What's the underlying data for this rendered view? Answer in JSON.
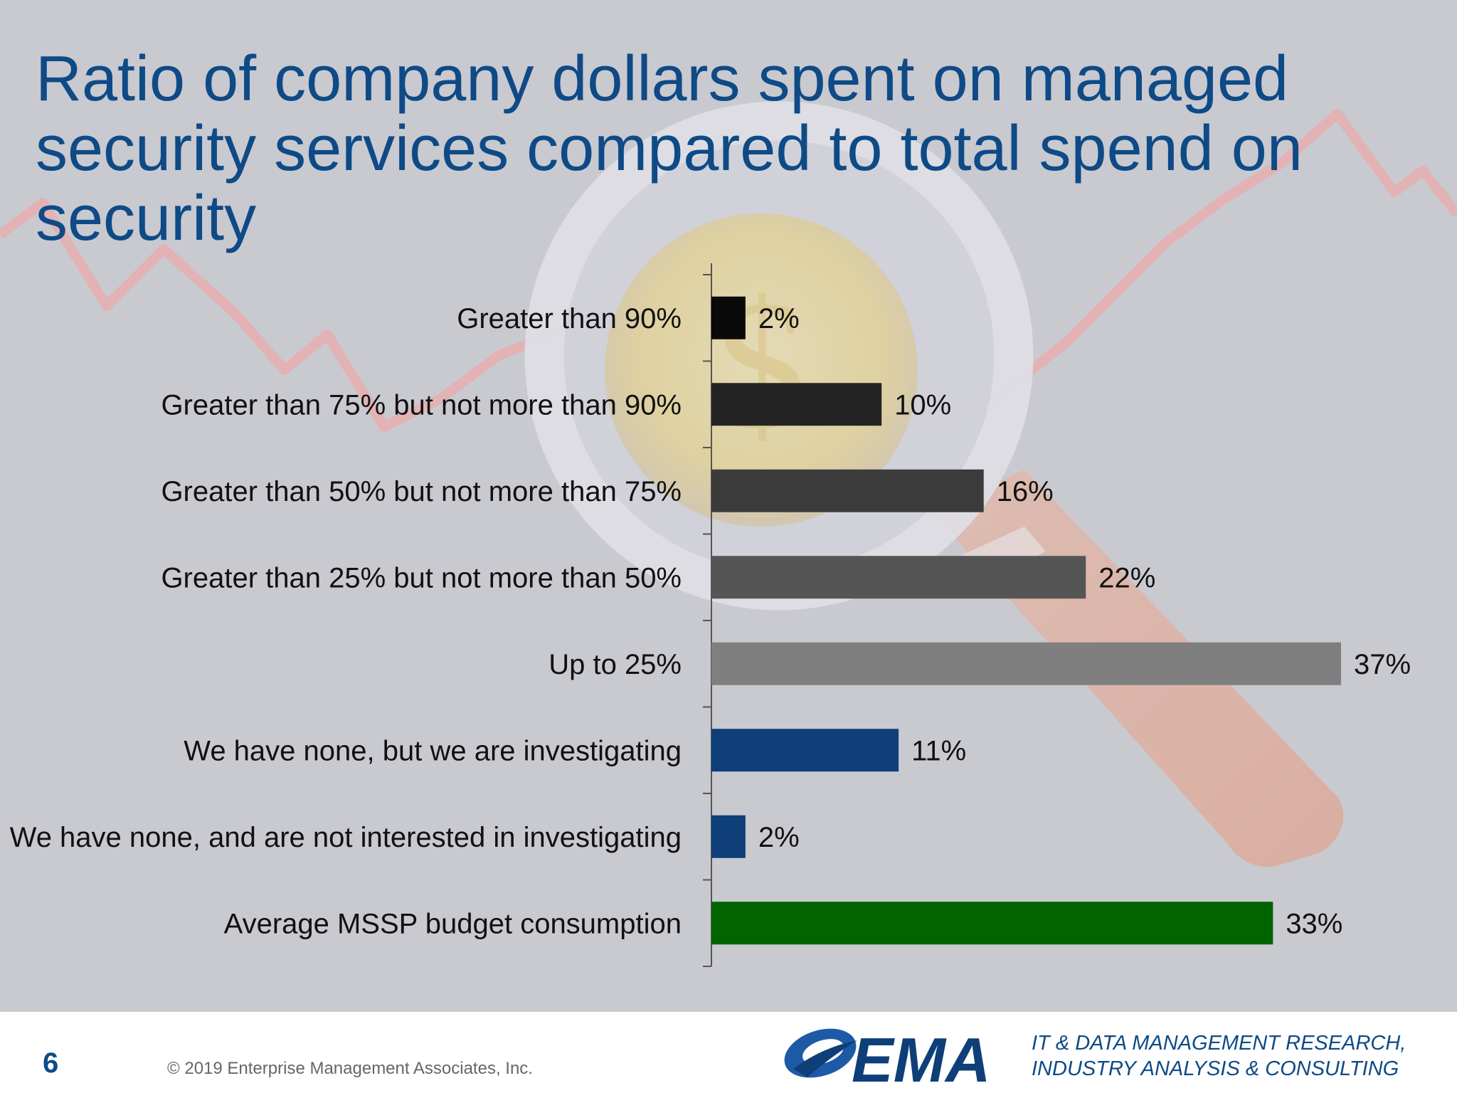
{
  "title": "Ratio of company dollars spent on managed security services compared to total spend on security",
  "background_icon": "magnifier-coin-trendline-illustration",
  "colors": {
    "title": "#0e4a86",
    "bar_gray_1": "#0a0a0a",
    "bar_gray_2": "#232323",
    "bar_gray_3": "#3b3b3b",
    "bar_gray_4": "#555555",
    "bar_gray_5": "#7f7f7f",
    "bar_blue": "#0e3f78",
    "bar_green": "#006400"
  },
  "chart_data": {
    "type": "bar",
    "orientation": "horizontal",
    "title": "Ratio of company dollars spent on managed security services compared to total spend on security",
    "xlabel": "",
    "ylabel": "",
    "xlim": [
      0,
      37
    ],
    "grid": false,
    "categories": [
      "Greater than 90%",
      "Greater than 75% but not more than 90%",
      "Greater than 50% but not more than 75%",
      "Greater than 25% but not more than 50%",
      "Up to 25%",
      "We have none, but we are investigating",
      "We have none, and are not interested in investigating",
      "Average MSSP budget consumption"
    ],
    "values": [
      2,
      10,
      16,
      22,
      37,
      11,
      2,
      33
    ],
    "data_labels": [
      "2%",
      "10%",
      "16%",
      "22%",
      "37%",
      "11%",
      "2%",
      "33%"
    ],
    "bar_colors": [
      "#0a0a0a",
      "#232323",
      "#3b3b3b",
      "#555555",
      "#7f7f7f",
      "#0e3f78",
      "#0e3f78",
      "#006400"
    ]
  },
  "footer": {
    "page_number": "6",
    "copyright": "© 2019 Enterprise Management Associates, Inc.",
    "logo_text": "EMA",
    "logo_icon": "ema-swoosh-logo",
    "tagline_line1": "IT & DATA MANAGEMENT RESEARCH,",
    "tagline_line2": "INDUSTRY ANALYSIS & CONSULTING"
  }
}
